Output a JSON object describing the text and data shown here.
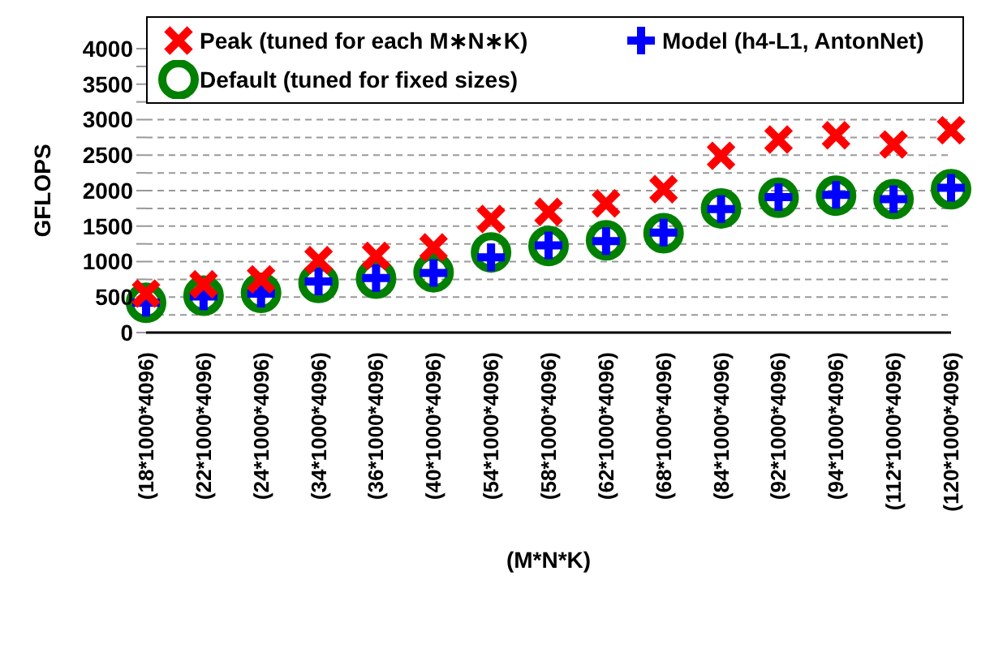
{
  "chart_data": {
    "type": "scatter",
    "xlabel": "(M*N*K)",
    "ylabel": "GFLOPS",
    "categories": [
      "(18*1000*4096)",
      "(22*1000*4096)",
      "(24*1000*4096)",
      "(34*1000*4096)",
      "(36*1000*4096)",
      "(40*1000*4096)",
      "(54*1000*4096)",
      "(58*1000*4096)",
      "(62*1000*4096)",
      "(68*1000*4096)",
      "(84*1000*4096)",
      "(92*1000*4096)",
      "(94*1000*4096)",
      "(112*1000*4096)",
      "(120*1000*4096)"
    ],
    "series": [
      {
        "name": "Peak (tuned for each M∗N∗K)",
        "color": "#ff0000",
        "marker": "cross",
        "values": [
          550,
          680,
          750,
          1020,
          1080,
          1200,
          1600,
          1700,
          1820,
          2020,
          2490,
          2720,
          2780,
          2650,
          2850
        ]
      },
      {
        "name": "Model (h4-L1, AntonNet)",
        "color": "#0000ff",
        "marker": "cross",
        "values": [
          420,
          510,
          550,
          720,
          770,
          840,
          1060,
          1230,
          1290,
          1410,
          1740,
          1910,
          1940,
          1880,
          2040
        ]
      },
      {
        "name": "Default (tuned for fixed sizes)",
        "color": "#008000",
        "marker": "circle",
        "values": [
          420,
          520,
          560,
          700,
          760,
          850,
          1130,
          1220,
          1300,
          1400,
          1750,
          1900,
          1930,
          1880,
          2020
        ]
      }
    ],
    "ylim": [
      0,
      4000
    ],
    "yticks": [
      0,
      {
        "value": 250,
        "label": null
      },
      500,
      {
        "value": 750,
        "label": null
      },
      1000,
      {
        "value": 1250,
        "label": null
      },
      1500,
      {
        "value": 1750,
        "label": null
      },
      2000,
      {
        "value": 2250,
        "label": null
      },
      2500,
      {
        "value": 2750,
        "label": null
      },
      3000,
      {
        "value": 3250,
        "label": null
      },
      3500,
      {
        "value": 3750,
        "label": null
      },
      4000
    ],
    "grid": "y",
    "legend": "top"
  }
}
